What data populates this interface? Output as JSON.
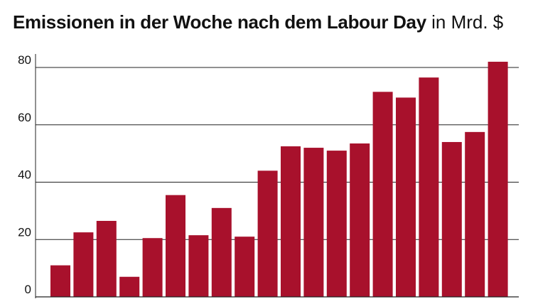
{
  "title": "Emissionen in der Woche nach dem Labour Day",
  "unit": "in Mrd. $",
  "colors": {
    "bar": "#a8112c",
    "grid": "#222222",
    "text": "#111111"
  },
  "chart_data": {
    "type": "bar",
    "title": "Emissionen in der Woche nach dem Labour Day",
    "subtitle": "in Mrd. $",
    "xlabel": "",
    "ylabel": "",
    "ylim": [
      0,
      80
    ],
    "yticks": [
      0,
      20,
      40,
      60,
      80
    ],
    "grid": true,
    "values": [
      11,
      22.5,
      26.5,
      7,
      20.5,
      35.5,
      21.5,
      31,
      21,
      44,
      52.5,
      52,
      51,
      53.5,
      71.5,
      69.5,
      76.5,
      54,
      57.5,
      82
    ]
  }
}
